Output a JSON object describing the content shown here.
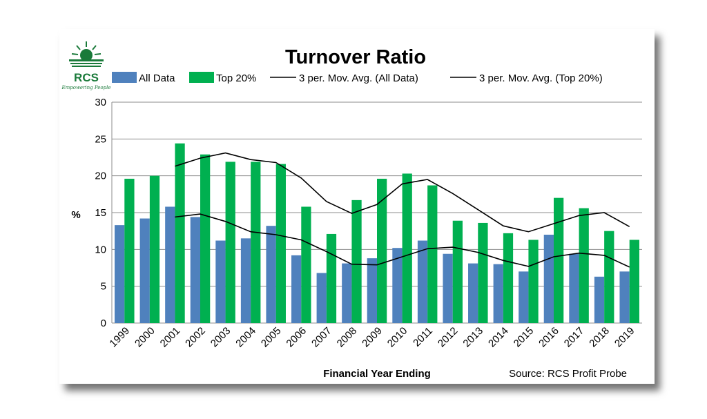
{
  "logo": {
    "text": "RCS",
    "tagline": "Empowering People"
  },
  "chart_data": {
    "type": "bar",
    "title": "Turnover Ratio",
    "xlabel": "Financial Year Ending",
    "ylabel": "%",
    "source": "Source: RCS Profit Probe",
    "ylim": [
      0,
      30
    ],
    "yticks": [
      0,
      5,
      10,
      15,
      20,
      25,
      30
    ],
    "grid": true,
    "legend_position": "top",
    "categories": [
      "1999",
      "2000",
      "2001",
      "2002",
      "2003",
      "2004",
      "2005",
      "2006",
      "2007",
      "2008",
      "2009",
      "2010",
      "2011",
      "2012",
      "2013",
      "2014",
      "2015",
      "2016",
      "2017",
      "2018",
      "2019"
    ],
    "series": [
      {
        "name": "All Data",
        "type": "bar",
        "color": "#4f81bd",
        "values": [
          13.3,
          14.2,
          15.8,
          14.4,
          11.2,
          11.5,
          13.2,
          9.2,
          6.8,
          8.1,
          8.8,
          10.2,
          11.2,
          9.4,
          8.1,
          8.0,
          7.0,
          12.0,
          9.4,
          6.3,
          7.0
        ]
      },
      {
        "name": "Top 20%",
        "type": "bar",
        "color": "#00b050",
        "values": [
          19.6,
          20.0,
          24.4,
          22.9,
          21.9,
          21.9,
          21.6,
          15.8,
          12.1,
          16.7,
          19.6,
          20.3,
          18.7,
          13.9,
          13.6,
          12.2,
          11.3,
          17.0,
          15.6,
          12.5,
          11.3
        ]
      },
      {
        "name": "3 per. Mov. Avg. (All Data)",
        "type": "line",
        "color": "#000000",
        "values": [
          null,
          null,
          14.4,
          14.8,
          13.8,
          12.4,
          12.0,
          11.3,
          9.7,
          8.0,
          7.9,
          9.0,
          10.1,
          10.3,
          9.6,
          8.5,
          7.7,
          9.0,
          9.5,
          9.2,
          7.6
        ]
      },
      {
        "name": "3 per. Mov. Avg. (Top 20%)",
        "type": "line",
        "color": "#000000",
        "values": [
          null,
          null,
          21.3,
          22.4,
          23.1,
          22.2,
          21.8,
          19.7,
          16.5,
          14.9,
          16.1,
          18.9,
          19.5,
          17.6,
          15.4,
          13.2,
          12.4,
          13.5,
          14.6,
          15.0,
          13.1
        ]
      }
    ]
  }
}
